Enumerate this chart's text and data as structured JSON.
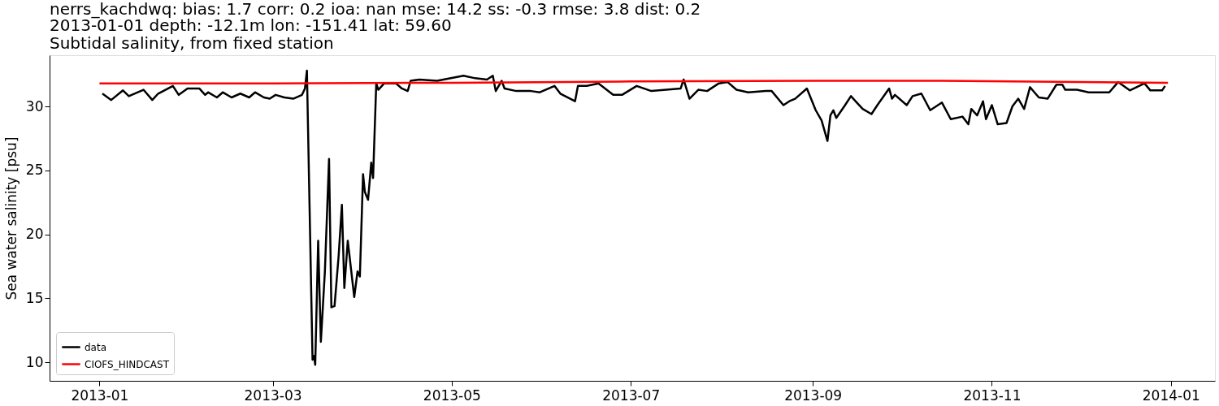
{
  "chart_data": {
    "type": "line",
    "title": "nerrs_kachdwq: bias: 1.7  corr: 0.2  ioa: nan  mse: 14.2  ss: -0.3  rmse: 3.8  dist: 0.2",
    "subtitle": "2013-01-01 depth: -12.1m lon: -151.41 lat: 59.60\nSubtidal salinity, from fixed station",
    "ylabel": "Sea water salinity [psu]",
    "xlim": [
      "2012-12-15",
      "2014-01-16"
    ],
    "xticks": [
      "2013-01",
      "2013-03",
      "2013-05",
      "2013-07",
      "2013-09",
      "2013-11",
      "2014-01"
    ],
    "ylim": [
      8.55,
      34.0
    ],
    "yticks": [
      10,
      15,
      20,
      25,
      30
    ],
    "grid": false,
    "legend": "bottom left",
    "line_style": "solid",
    "marker": "none",
    "series": [
      {
        "name": "data",
        "color": "#000000",
        "x": [
          "2013-01-02",
          "2013-01-05",
          "2013-01-09",
          "2013-01-11",
          "2013-01-16",
          "2013-01-19",
          "2013-01-21",
          "2013-01-26",
          "2013-01-28",
          "2013-01-31",
          "2013-02-04",
          "2013-02-06",
          "2013-02-07",
          "2013-02-10",
          "2013-02-12",
          "2013-02-15",
          "2013-02-18",
          "2013-02-21",
          "2013-02-23",
          "2013-02-26",
          "2013-02-28",
          "2013-03-02",
          "2013-03-05",
          "2013-03-08",
          "2013-03-11",
          "2013-03-12",
          "2013-03-12T16:00",
          "2013-03-14T14:00",
          "2013-03-15T02:00",
          "2013-03-15T12:00",
          "2013-03-16T12:00",
          "2013-03-17T10:00",
          "2013-03-18T19:00",
          "2013-03-20T05:00",
          "2013-03-21",
          "2013-03-22T02:00",
          "2013-03-23T12:00",
          "2013-03-24T14:00",
          "2013-03-25T10:00",
          "2013-03-26T14:00",
          "2013-03-28T19:00",
          "2013-03-29T22:00",
          "2013-03-30T17:00",
          "2013-03-31T19:00",
          "2013-04-01T10:00",
          "2013-04-02T12:00",
          "2013-04-03T14:00",
          "2013-04-04T05:00",
          "2013-04-05T07:00",
          "2013-04-06",
          "2013-04-08",
          "2013-04-12",
          "2013-04-14",
          "2013-04-16",
          "2013-04-17",
          "2013-04-20",
          "2013-04-26",
          "2013-05-05",
          "2013-05-09",
          "2013-05-13",
          "2013-05-15",
          "2013-05-16",
          "2013-05-18",
          "2013-05-19",
          "2013-05-23",
          "2013-05-28",
          "2013-05-31",
          "2013-06-05",
          "2013-06-07",
          "2013-06-12",
          "2013-06-13",
          "2013-06-16",
          "2013-06-20",
          "2013-06-25",
          "2013-06-28",
          "2013-07-03",
          "2013-07-08",
          "2013-07-13",
          "2013-07-18",
          "2013-07-19",
          "2013-07-21",
          "2013-07-24",
          "2013-07-27",
          "2013-07-31",
          "2013-08-03",
          "2013-08-06",
          "2013-08-10",
          "2013-08-16",
          "2013-08-18",
          "2013-08-22",
          "2013-08-24",
          "2013-08-26",
          "2013-08-30",
          "2013-09-02",
          "2013-09-04",
          "2013-09-06",
          "2013-09-07",
          "2013-09-08",
          "2013-09-09",
          "2013-09-12",
          "2013-09-14",
          "2013-09-16",
          "2013-09-18",
          "2013-09-21",
          "2013-09-23",
          "2013-09-27",
          "2013-09-28",
          "2013-09-29",
          "2013-10-03",
          "2013-10-05",
          "2013-10-08",
          "2013-10-11",
          "2013-10-15",
          "2013-10-18",
          "2013-10-22",
          "2013-10-24",
          "2013-10-25",
          "2013-10-27",
          "2013-10-29",
          "2013-10-30",
          "2013-11-01",
          "2013-11-03",
          "2013-11-06",
          "2013-11-08",
          "2013-11-10",
          "2013-11-12",
          "2013-11-14",
          "2013-11-17",
          "2013-11-20",
          "2013-11-23",
          "2013-11-25",
          "2013-11-26",
          "2013-11-30",
          "2013-12-04",
          "2013-12-11",
          "2013-12-14",
          "2013-12-18",
          "2013-12-23",
          "2013-12-25",
          "2013-12-29",
          "2013-12-30"
        ],
        "values": [
          31.0,
          30.5,
          31.25,
          30.8,
          31.3,
          30.5,
          31.0,
          31.6,
          30.9,
          31.4,
          31.4,
          30.9,
          31.1,
          30.7,
          31.1,
          30.7,
          31.0,
          30.7,
          31.1,
          30.7,
          30.6,
          30.9,
          30.7,
          30.6,
          30.9,
          31.4,
          32.8,
          10.2,
          10.5,
          9.8,
          19.5,
          11.6,
          17.1,
          25.9,
          14.3,
          14.4,
          18.4,
          22.3,
          15.8,
          19.5,
          15.1,
          17.1,
          16.7,
          24.7,
          23.3,
          22.7,
          25.6,
          24.4,
          31.8,
          31.3,
          31.8,
          31.8,
          31.4,
          31.2,
          32.0,
          32.1,
          32.0,
          32.4,
          32.2,
          32.1,
          32.4,
          31.2,
          32.0,
          31.4,
          31.2,
          31.2,
          31.1,
          31.6,
          31.0,
          30.4,
          31.6,
          31.6,
          31.8,
          30.9,
          30.9,
          31.6,
          31.2,
          31.3,
          31.4,
          32.1,
          30.6,
          31.3,
          31.2,
          31.8,
          31.9,
          31.3,
          31.1,
          31.2,
          31.2,
          30.1,
          30.4,
          30.6,
          31.4,
          29.7,
          28.9,
          27.3,
          29.3,
          29.7,
          29.1,
          30.1,
          30.8,
          30.3,
          29.8,
          29.4,
          30.1,
          31.4,
          30.6,
          30.9,
          30.1,
          30.8,
          31.0,
          29.7,
          30.3,
          29.0,
          29.2,
          28.6,
          29.8,
          29.3,
          30.4,
          29.0,
          30.1,
          28.6,
          28.7,
          30.0,
          30.6,
          29.8,
          31.5,
          30.7,
          30.6,
          31.7,
          31.7,
          31.3,
          31.3,
          31.1,
          31.1,
          31.9,
          31.25,
          31.8,
          31.25,
          31.25,
          31.6
        ]
      },
      {
        "name": "CIOFS_HINDCAST",
        "color": "#ff0000",
        "x": [
          "2013-01-01",
          "2013-03-01",
          "2013-05-01",
          "2013-07-01",
          "2013-09-01",
          "2013-10-15",
          "2013-12-01",
          "2013-12-31"
        ],
        "values": [
          31.8,
          31.8,
          31.85,
          31.95,
          32.0,
          32.0,
          31.9,
          31.85
        ]
      }
    ]
  }
}
